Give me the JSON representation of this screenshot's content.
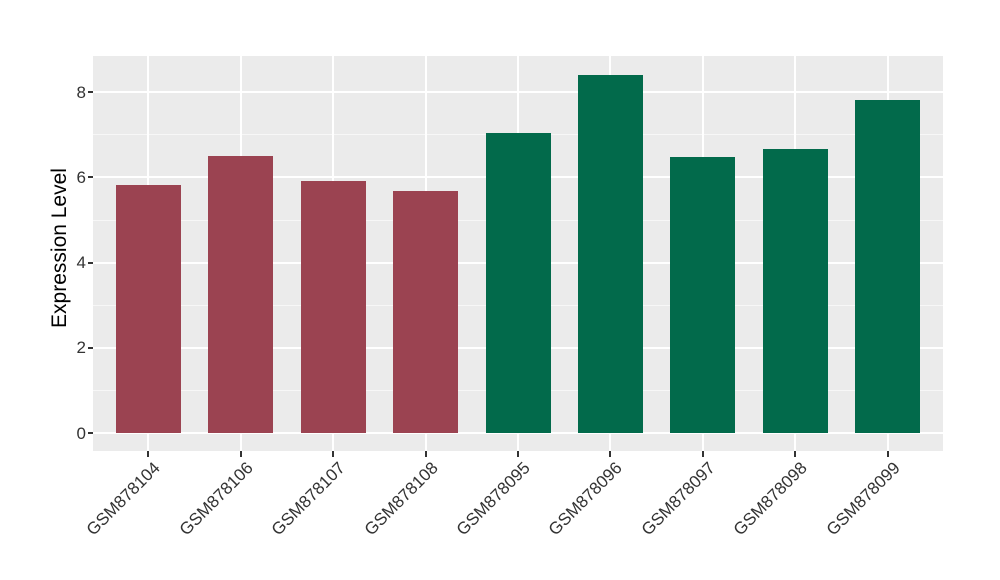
{
  "chart_data": {
    "type": "bar",
    "title": "",
    "xlabel": "",
    "ylabel": "Expression Level",
    "categories": [
      "GSM878104",
      "GSM878106",
      "GSM878107",
      "GSM878108",
      "GSM878095",
      "GSM878096",
      "GSM878097",
      "GSM878098",
      "GSM878099"
    ],
    "values": [
      5.81,
      6.5,
      5.92,
      5.68,
      7.05,
      8.41,
      6.47,
      6.66,
      7.81
    ],
    "bar_colors": [
      "#9B4351",
      "#9B4351",
      "#9B4351",
      "#9B4351",
      "#026A4B",
      "#026A4B",
      "#026A4B",
      "#026A4B",
      "#026A4B"
    ],
    "y_ticks": [
      0,
      2,
      4,
      6,
      8
    ],
    "ylim": [
      -0.42,
      8.84
    ],
    "grid": true,
    "legend": false,
    "panel_background": "#EBEBEB",
    "grid_color": "#FFFFFF",
    "tick_color": "#333333"
  }
}
